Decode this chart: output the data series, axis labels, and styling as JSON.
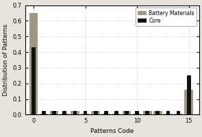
{
  "title": "",
  "xlabel": "Patterns Code",
  "ylabel": "Distribution of Patterns",
  "xlim": [
    -0.8,
    16
  ],
  "ylim": [
    0,
    0.7
  ],
  "yticks": [
    0.0,
    0.1,
    0.2,
    0.3,
    0.4,
    0.5,
    0.6,
    0.7
  ],
  "xticks": [
    0,
    5,
    10,
    15
  ],
  "battery_color": "#a09880",
  "core_color": "#111111",
  "background_color": "#ffffff",
  "fig_background": "#e8e4dc",
  "bar_width": 0.38,
  "patterns_codes": [
    0,
    1,
    2,
    3,
    4,
    5,
    6,
    7,
    8,
    9,
    10,
    11,
    12,
    13,
    14,
    15
  ],
  "battery_values": [
    0.65,
    0.005,
    0.022,
    0.005,
    0.022,
    0.005,
    0.022,
    0.005,
    0.005,
    0.022,
    0.005,
    0.022,
    0.022,
    0.005,
    0.005,
    0.16
  ],
  "core_values": [
    0.43,
    0.022,
    0.022,
    0.022,
    0.022,
    0.022,
    0.022,
    0.022,
    0.022,
    0.022,
    0.022,
    0.022,
    0.022,
    0.022,
    0.022,
    0.25
  ],
  "legend_labels": [
    "Battery Materials",
    "Core"
  ],
  "figsize": [
    2.95,
    2.0
  ],
  "dpi": 100
}
